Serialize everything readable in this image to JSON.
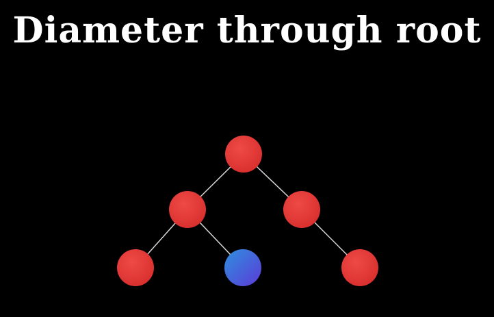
{
  "title": "Diameter through root",
  "colors": {
    "background": "#000000",
    "title": "#ffffff",
    "node_default": "#e53935",
    "node_highlight_start": "#2f8fe0",
    "node_highlight_end": "#5b3bd6",
    "edge": "#d9d9d9"
  },
  "tree": {
    "nodes": [
      {
        "id": "root",
        "state": "default"
      },
      {
        "id": "left",
        "state": "default"
      },
      {
        "id": "right",
        "state": "default"
      },
      {
        "id": "left-left",
        "state": "default"
      },
      {
        "id": "left-right",
        "state": "highlighted"
      },
      {
        "id": "right-right",
        "state": "default"
      }
    ],
    "edges": [
      {
        "from": "root",
        "to": "left"
      },
      {
        "from": "root",
        "to": "right"
      },
      {
        "from": "left",
        "to": "left-left"
      },
      {
        "from": "left",
        "to": "left-right"
      },
      {
        "from": "right",
        "to": "right-right"
      }
    ]
  }
}
